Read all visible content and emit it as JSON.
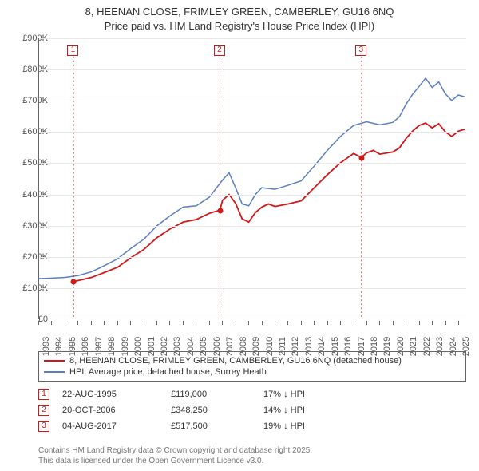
{
  "title": {
    "line1": "8, HEENAN CLOSE, FRIMLEY GREEN, CAMBERLEY, GU16 6NQ",
    "line2": "Price paid vs. HM Land Registry's House Price Index (HPI)"
  },
  "chart": {
    "type": "line",
    "background_color": "#ffffff",
    "grid_color": "#e8e8e8",
    "axis_color": "#666666",
    "label_color": "#555555",
    "label_fontsize": 11,
    "y": {
      "min": 0,
      "max": 900000,
      "step": 100000,
      "labels": [
        "£0",
        "£100K",
        "£200K",
        "£300K",
        "£400K",
        "£500K",
        "£600K",
        "£700K",
        "£800K",
        "£900K"
      ]
    },
    "x": {
      "min": 1993,
      "max": 2025.6,
      "years": [
        1993,
        1994,
        1995,
        1996,
        1997,
        1998,
        1999,
        2000,
        2001,
        2002,
        2003,
        2004,
        2005,
        2006,
        2007,
        2008,
        2009,
        2010,
        2011,
        2012,
        2013,
        2014,
        2015,
        2016,
        2017,
        2018,
        2019,
        2020,
        2021,
        2022,
        2023,
        2024,
        2025
      ]
    },
    "series": [
      {
        "name": "price_paid",
        "label": "8, HEENAN CLOSE, FRIMLEY GREEN, CAMBERLEY, GU16 6NQ (detached house)",
        "color": "#d01818",
        "line_width": 1.8,
        "points": [
          [
            1995.64,
            119000
          ],
          [
            1996,
            122000
          ],
          [
            1997,
            132000
          ],
          [
            1998,
            148000
          ],
          [
            1999,
            165000
          ],
          [
            2000,
            195000
          ],
          [
            2001,
            222000
          ],
          [
            2002,
            260000
          ],
          [
            2003,
            288000
          ],
          [
            2004,
            310000
          ],
          [
            2005,
            318000
          ],
          [
            2006,
            338000
          ],
          [
            2006.8,
            348250
          ],
          [
            2007,
            380000
          ],
          [
            2007.5,
            398000
          ],
          [
            2008,
            370000
          ],
          [
            2008.5,
            320000
          ],
          [
            2009,
            310000
          ],
          [
            2009.5,
            340000
          ],
          [
            2010,
            358000
          ],
          [
            2010.5,
            368000
          ],
          [
            2011,
            360000
          ],
          [
            2012,
            368000
          ],
          [
            2013,
            378000
          ],
          [
            2014,
            420000
          ],
          [
            2015,
            462000
          ],
          [
            2016,
            500000
          ],
          [
            2017,
            530000
          ],
          [
            2017.59,
            517500
          ],
          [
            2018,
            532000
          ],
          [
            2018.5,
            540000
          ],
          [
            2019,
            528000
          ],
          [
            2020,
            535000
          ],
          [
            2020.5,
            548000
          ],
          [
            2021,
            578000
          ],
          [
            2021.5,
            602000
          ],
          [
            2022,
            620000
          ],
          [
            2022.5,
            628000
          ],
          [
            2023,
            612000
          ],
          [
            2023.5,
            626000
          ],
          [
            2024,
            600000
          ],
          [
            2024.5,
            585000
          ],
          [
            2025,
            602000
          ],
          [
            2025.5,
            608000
          ]
        ]
      },
      {
        "name": "hpi",
        "label": "HPI: Average price, detached house, Surrey Heath",
        "color": "#5a7fc0",
        "line_width": 1.5,
        "points": [
          [
            1993,
            128000
          ],
          [
            1994,
            130000
          ],
          [
            1995,
            132000
          ],
          [
            1996,
            138000
          ],
          [
            1997,
            150000
          ],
          [
            1998,
            170000
          ],
          [
            1999,
            192000
          ],
          [
            2000,
            225000
          ],
          [
            2001,
            255000
          ],
          [
            2002,
            298000
          ],
          [
            2003,
            330000
          ],
          [
            2004,
            358000
          ],
          [
            2005,
            362000
          ],
          [
            2006,
            390000
          ],
          [
            2007,
            445000
          ],
          [
            2007.5,
            468000
          ],
          [
            2008,
            420000
          ],
          [
            2008.5,
            368000
          ],
          [
            2009,
            362000
          ],
          [
            2009.5,
            398000
          ],
          [
            2010,
            420000
          ],
          [
            2011,
            415000
          ],
          [
            2012,
            428000
          ],
          [
            2013,
            442000
          ],
          [
            2014,
            490000
          ],
          [
            2015,
            540000
          ],
          [
            2016,
            585000
          ],
          [
            2017,
            620000
          ],
          [
            2018,
            632000
          ],
          [
            2019,
            622000
          ],
          [
            2020,
            630000
          ],
          [
            2020.5,
            648000
          ],
          [
            2021,
            688000
          ],
          [
            2021.5,
            720000
          ],
          [
            2022,
            745000
          ],
          [
            2022.5,
            772000
          ],
          [
            2023,
            742000
          ],
          [
            2023.5,
            760000
          ],
          [
            2024,
            722000
          ],
          [
            2024.5,
            700000
          ],
          [
            2025,
            718000
          ],
          [
            2025.5,
            712000
          ]
        ]
      }
    ],
    "sale_markers": {
      "color": "#d01818",
      "box_top": 56,
      "items": [
        {
          "n": "1",
          "x": 1995.64,
          "y": 119000
        },
        {
          "n": "2",
          "x": 2006.8,
          "y": 348250
        },
        {
          "n": "3",
          "x": 2017.59,
          "y": 517500
        }
      ]
    }
  },
  "legend": {
    "rows": [
      {
        "color": "#d01818",
        "label": "8, HEENAN CLOSE, FRIMLEY GREEN, CAMBERLEY, GU16 6NQ (detached house)"
      },
      {
        "color": "#5a7fc0",
        "label": "HPI: Average price, detached house, Surrey Heath"
      }
    ]
  },
  "sales": {
    "color": "#d01818",
    "rows": [
      {
        "n": "1",
        "date": "22-AUG-1995",
        "price": "£119,000",
        "delta": "17% ↓ HPI"
      },
      {
        "n": "2",
        "date": "20-OCT-2006",
        "price": "£348,250",
        "delta": "14% ↓ HPI"
      },
      {
        "n": "3",
        "date": "04-AUG-2017",
        "price": "£517,500",
        "delta": "19% ↓ HPI"
      }
    ]
  },
  "attribution": {
    "line1": "Contains HM Land Registry data © Crown copyright and database right 2025.",
    "line2": "This data is licensed under the Open Government Licence v3.0."
  }
}
